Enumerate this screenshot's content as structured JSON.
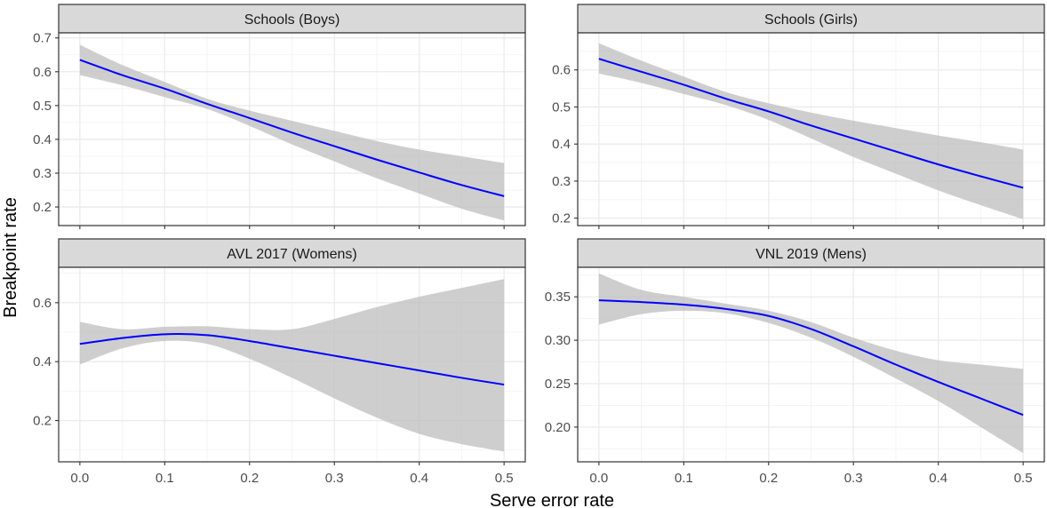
{
  "axes": {
    "xlabel": "Serve error rate",
    "ylabel": "Breakpoint rate"
  },
  "colors": {
    "line": "#0000ff",
    "ribbon": "#bebebe",
    "strip_fill": "#d9d9d9",
    "panel_border": "#333333",
    "grid": "#ebebeb"
  },
  "chart_data": [
    {
      "type": "line",
      "title": "Schools (Boys)",
      "xlim": [
        -0.025,
        0.525
      ],
      "ylim": [
        0.145,
        0.715
      ],
      "xticks": [
        0.0,
        0.1,
        0.2,
        0.3,
        0.4,
        0.5
      ],
      "xtick_labels": [
        "0.0",
        "0.1",
        "0.2",
        "0.3",
        "0.4",
        "0.5"
      ],
      "yticks": [
        0.2,
        0.3,
        0.4,
        0.5,
        0.6,
        0.7
      ],
      "ytick_labels": [
        "0.2",
        "0.3",
        "0.4",
        "0.5",
        "0.6",
        "0.7"
      ],
      "x": [
        0.0,
        0.05,
        0.1,
        0.15,
        0.2,
        0.25,
        0.3,
        0.35,
        0.4,
        0.45,
        0.5
      ],
      "y": [
        0.635,
        0.59,
        0.55,
        0.505,
        0.463,
        0.42,
        0.38,
        0.34,
        0.302,
        0.265,
        0.232
      ],
      "ymin": [
        0.59,
        0.56,
        0.525,
        0.49,
        0.44,
        0.385,
        0.335,
        0.285,
        0.24,
        0.195,
        0.16
      ],
      "ymax": [
        0.68,
        0.62,
        0.57,
        0.52,
        0.485,
        0.455,
        0.425,
        0.395,
        0.37,
        0.35,
        0.33
      ],
      "grid": true
    },
    {
      "type": "line",
      "title": "Schools (Girls)",
      "xlim": [
        -0.025,
        0.525
      ],
      "ylim": [
        0.18,
        0.7
      ],
      "xticks": [
        0.0,
        0.1,
        0.2,
        0.3,
        0.4,
        0.5
      ],
      "xtick_labels": [
        "0.0",
        "0.1",
        "0.2",
        "0.3",
        "0.4",
        "0.5"
      ],
      "yticks": [
        0.2,
        0.3,
        0.4,
        0.5,
        0.6
      ],
      "ytick_labels": [
        "0.2",
        "0.3",
        "0.4",
        "0.5",
        "0.6"
      ],
      "x": [
        0.0,
        0.05,
        0.1,
        0.15,
        0.2,
        0.25,
        0.3,
        0.35,
        0.4,
        0.45,
        0.5
      ],
      "y": [
        0.63,
        0.595,
        0.56,
        0.522,
        0.488,
        0.45,
        0.415,
        0.38,
        0.345,
        0.313,
        0.282
      ],
      "ymin": [
        0.59,
        0.565,
        0.535,
        0.505,
        0.465,
        0.415,
        0.365,
        0.32,
        0.275,
        0.235,
        0.197
      ],
      "ymax": [
        0.672,
        0.625,
        0.582,
        0.54,
        0.51,
        0.485,
        0.463,
        0.443,
        0.423,
        0.405,
        0.385
      ],
      "grid": true
    },
    {
      "type": "line",
      "title": "AVL 2017 (Womens)",
      "xlim": [
        -0.025,
        0.525
      ],
      "ylim": [
        0.06,
        0.72
      ],
      "xticks": [
        0.0,
        0.1,
        0.2,
        0.3,
        0.4,
        0.5
      ],
      "xtick_labels": [
        "0.0",
        "0.1",
        "0.2",
        "0.3",
        "0.4",
        "0.5"
      ],
      "yticks": [
        0.2,
        0.4,
        0.6
      ],
      "ytick_labels": [
        "0.2",
        "0.4",
        "0.6"
      ],
      "x": [
        0.0,
        0.05,
        0.1,
        0.15,
        0.2,
        0.25,
        0.3,
        0.35,
        0.4,
        0.45,
        0.5
      ],
      "y": [
        0.46,
        0.48,
        0.493,
        0.49,
        0.47,
        0.445,
        0.42,
        0.395,
        0.37,
        0.345,
        0.322
      ],
      "ymin": [
        0.39,
        0.445,
        0.47,
        0.46,
        0.41,
        0.345,
        0.275,
        0.21,
        0.155,
        0.12,
        0.095
      ],
      "ymax": [
        0.535,
        0.51,
        0.518,
        0.52,
        0.51,
        0.51,
        0.545,
        0.585,
        0.62,
        0.65,
        0.68
      ],
      "grid": true
    },
    {
      "type": "line",
      "title": "VNL 2019 (Mens)",
      "xlim": [
        -0.025,
        0.525
      ],
      "ylim": [
        0.16,
        0.384
      ],
      "xticks": [
        0.0,
        0.1,
        0.2,
        0.3,
        0.4,
        0.5
      ],
      "xtick_labels": [
        "0.0",
        "0.1",
        "0.2",
        "0.3",
        "0.4",
        "0.5"
      ],
      "yticks": [
        0.2,
        0.25,
        0.3,
        0.35
      ],
      "ytick_labels": [
        "0.20",
        "0.25",
        "0.30",
        "0.35"
      ],
      "x": [
        0.0,
        0.05,
        0.1,
        0.15,
        0.2,
        0.25,
        0.3,
        0.35,
        0.4,
        0.45,
        0.5
      ],
      "y": [
        0.346,
        0.344,
        0.341,
        0.336,
        0.328,
        0.313,
        0.293,
        0.272,
        0.252,
        0.233,
        0.214
      ],
      "ymin": [
        0.318,
        0.33,
        0.334,
        0.331,
        0.32,
        0.303,
        0.281,
        0.256,
        0.23,
        0.2,
        0.17
      ],
      "ymax": [
        0.377,
        0.358,
        0.35,
        0.342,
        0.334,
        0.321,
        0.303,
        0.288,
        0.277,
        0.272,
        0.267
      ],
      "grid": true
    }
  ]
}
